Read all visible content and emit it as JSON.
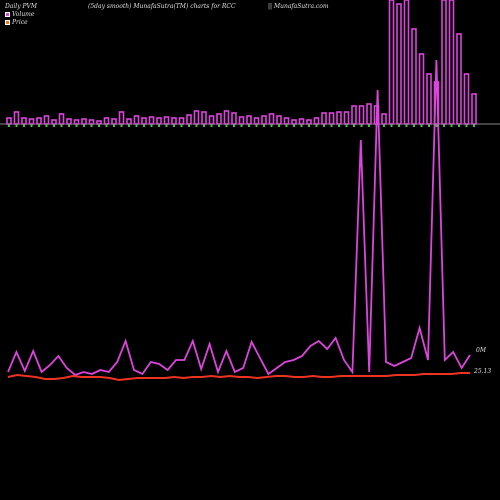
{
  "header": {
    "left": "Daily PVM",
    "middle": "(5day smooth) MunafaSutra(TM) charts for RCC",
    "right": "|| MunafaSutra.com"
  },
  "legend": {
    "volume_label": "Volume",
    "price_label": "Price"
  },
  "colors": {
    "volume": "#dd44dd",
    "price": "#ee3322",
    "down": "#33cc33",
    "baseline": "#888888"
  },
  "chart_data": {
    "type": "bar",
    "title": "(5day smooth) MunafaSutra(TM) charts for RCC",
    "volume_bars": [
      6,
      12,
      6,
      5,
      6,
      8,
      4,
      10,
      5,
      4,
      5,
      4,
      3,
      6,
      5,
      12,
      5,
      8,
      6,
      7,
      6,
      7,
      6,
      6,
      9,
      13,
      12,
      8,
      10,
      13,
      11,
      7,
      8,
      6,
      8,
      10,
      8,
      6,
      4,
      5,
      4,
      6,
      11,
      11,
      12,
      12,
      18,
      18,
      20,
      18,
      10,
      140,
      120,
      160,
      95,
      70,
      50,
      42,
      140,
      160,
      90,
      50,
      30
    ],
    "down_bars": [
      0,
      0,
      0,
      0,
      0,
      0,
      0,
      0,
      0,
      0,
      0,
      0,
      0,
      0,
      0,
      0,
      0,
      0,
      0,
      0,
      0,
      0,
      0,
      0,
      0,
      0,
      0,
      0,
      0,
      0,
      0,
      0,
      0,
      0,
      0,
      0,
      0,
      0,
      0,
      0,
      0,
      0,
      0,
      0,
      0,
      0,
      0,
      0,
      0,
      0,
      0,
      0,
      0,
      0,
      0,
      0,
      0,
      0,
      0,
      0,
      0,
      0,
      0
    ],
    "volume_line": [
      372,
      352,
      371,
      351,
      372,
      365,
      356,
      368,
      375,
      372,
      374,
      370,
      372,
      362,
      341,
      370,
      374,
      362,
      364,
      370,
      360,
      360,
      341,
      369,
      344,
      372,
      351,
      372,
      368,
      342,
      358,
      374,
      368,
      362,
      360,
      356,
      346,
      341,
      349,
      338,
      360,
      372,
      140,
      372,
      90,
      362,
      366,
      362,
      358,
      328,
      360,
      60,
      360,
      352,
      368,
      355
    ],
    "price_line": [
      377,
      375,
      376,
      377,
      379,
      379,
      378,
      376,
      377,
      377,
      377,
      378,
      380,
      379,
      378,
      378,
      378,
      378,
      377,
      378,
      377,
      377,
      376,
      377,
      376,
      377,
      377,
      378,
      377,
      376,
      376,
      377,
      377,
      376,
      377,
      377,
      376,
      376,
      376,
      376,
      376,
      376,
      375,
      375,
      375,
      374,
      374,
      374,
      374,
      373,
      373
    ],
    "volume_end_label": "0M",
    "price_end_label": "25.13"
  }
}
